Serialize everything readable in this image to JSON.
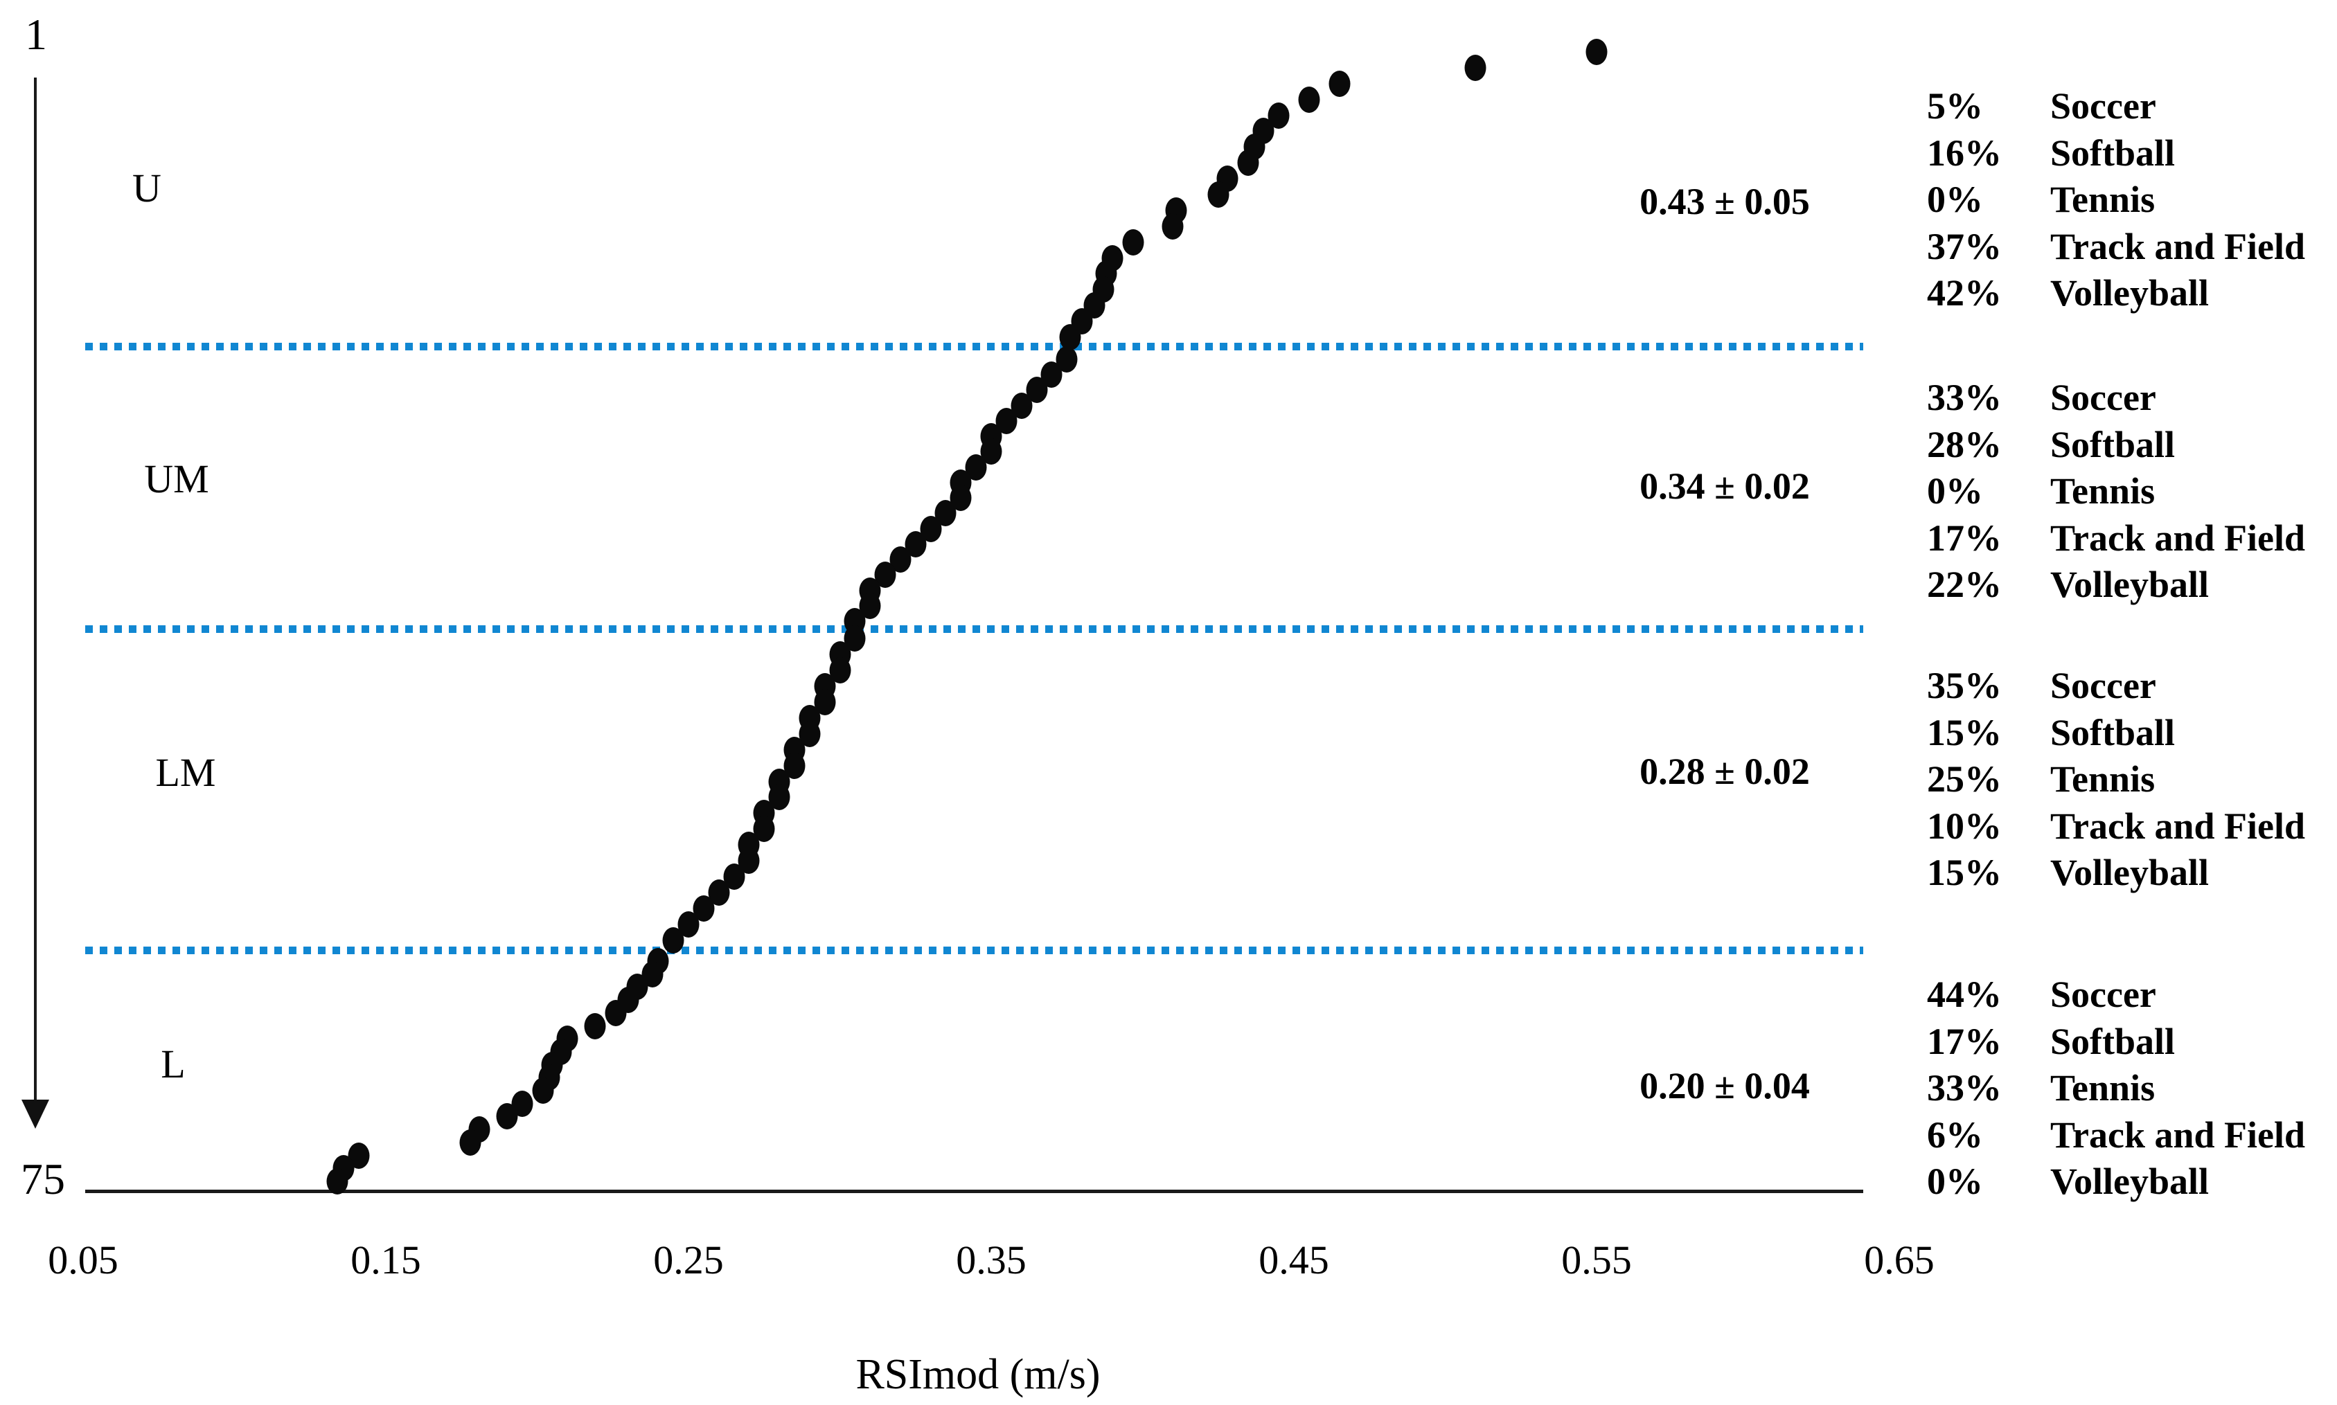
{
  "chart_data": {
    "type": "scatter",
    "description": "Ranked individual RSImod values for 75 athletes (rank 1 at top to 75 at bottom), split into four quartile groups by blue dotted lines; each group shows mean ± SD and sport composition percentages.",
    "xlabel": "RSImod (m/s)",
    "x_ticks": [
      "0.05",
      "0.15",
      "0.25",
      "0.35",
      "0.45",
      "0.55",
      "0.65"
    ],
    "xlim": [
      0.05,
      0.65
    ],
    "y_axis": {
      "top_tick": "1",
      "bottom_tick": "75"
    },
    "n_athletes": 75,
    "colors": {
      "dot": "#0a0a0a",
      "divider": "#1187d2",
      "text": "#000000"
    },
    "legend_sports": [
      "Soccer",
      "Softball",
      "Tennis",
      "Track and Field",
      "Volleyball"
    ],
    "groups": [
      {
        "label": "U",
        "mean_sd": "0.43 ± 0.05",
        "rank_start": 1,
        "rank_end": 19,
        "legend": [
          {
            "pct": "5%",
            "sport": "Soccer"
          },
          {
            "pct": "16%",
            "sport": "Softball"
          },
          {
            "pct": "0%",
            "sport": "Tennis"
          },
          {
            "pct": "37%",
            "sport": "Track and Field"
          },
          {
            "pct": "42%",
            "sport": "Volleyball"
          }
        ],
        "values": [
          0.55,
          0.51,
          0.465,
          0.455,
          0.445,
          0.44,
          0.437,
          0.435,
          0.428,
          0.425,
          0.411,
          0.41,
          0.397,
          0.39,
          0.388,
          0.387,
          0.384,
          0.38,
          0.376
        ]
      },
      {
        "label": "UM",
        "mean_sd": "0.34 ± 0.02",
        "rank_start": 20,
        "rank_end": 37,
        "legend": [
          {
            "pct": "33%",
            "sport": "Soccer"
          },
          {
            "pct": "28%",
            "sport": "Softball"
          },
          {
            "pct": "0%",
            "sport": "Tennis"
          },
          {
            "pct": "17%",
            "sport": "Track and Field"
          },
          {
            "pct": "22%",
            "sport": "Volleyball"
          }
        ],
        "values": [
          0.375,
          0.37,
          0.365,
          0.36,
          0.355,
          0.35,
          0.35,
          0.345,
          0.34,
          0.34,
          0.335,
          0.33,
          0.325,
          0.32,
          0.315,
          0.31,
          0.31,
          0.305
        ]
      },
      {
        "label": "LM",
        "mean_sd": "0.28 ± 0.02",
        "rank_start": 38,
        "rank_end": 57,
        "legend": [
          {
            "pct": "35%",
            "sport": "Soccer"
          },
          {
            "pct": "15%",
            "sport": "Softball"
          },
          {
            "pct": "25%",
            "sport": "Tennis"
          },
          {
            "pct": "10%",
            "sport": "Track and Field"
          },
          {
            "pct": "15%",
            "sport": "Volleyball"
          }
        ],
        "values": [
          0.305,
          0.3,
          0.3,
          0.295,
          0.295,
          0.29,
          0.29,
          0.285,
          0.285,
          0.28,
          0.28,
          0.275,
          0.275,
          0.27,
          0.27,
          0.265,
          0.26,
          0.255,
          0.25,
          0.245
        ]
      },
      {
        "label": "L",
        "mean_sd": "0.20 ± 0.04",
        "rank_start": 58,
        "rank_end": 75,
        "legend": [
          {
            "pct": "44%",
            "sport": "Soccer"
          },
          {
            "pct": "17%",
            "sport": "Softball"
          },
          {
            "pct": "33%",
            "sport": "Tennis"
          },
          {
            "pct": "6%",
            "sport": "Track and Field"
          },
          {
            "pct": "0%",
            "sport": "Volleyball"
          }
        ],
        "values": [
          0.24,
          0.238,
          0.233,
          0.23,
          0.226,
          0.219,
          0.21,
          0.208,
          0.205,
          0.204,
          0.202,
          0.195,
          0.19,
          0.181,
          0.178,
          0.141,
          0.136,
          0.134
        ]
      }
    ]
  }
}
